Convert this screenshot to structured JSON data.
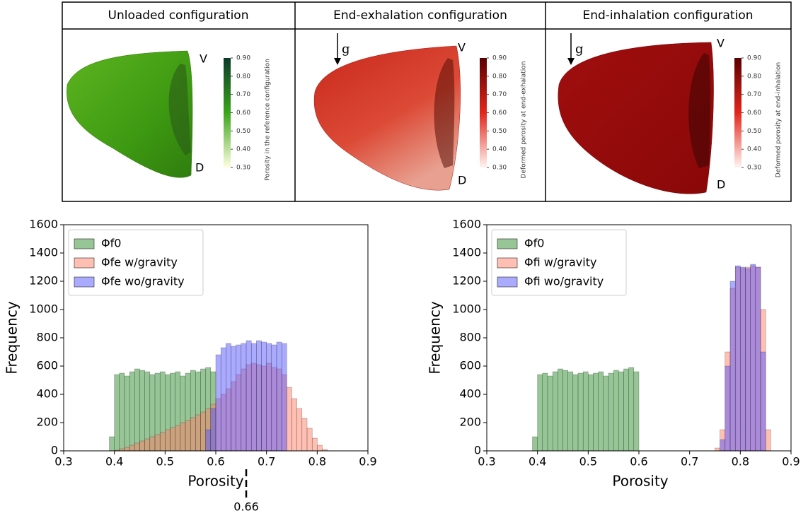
{
  "panels": [
    {
      "title": "Unloaded configuration",
      "labels": [
        "V",
        "D"
      ],
      "colorbar": {
        "label": "Porosity in the reference configuration",
        "clim": [
          0.3,
          0.9
        ],
        "colors": [
          "#ffffe0",
          "#3aa51a",
          "#0b3a2a"
        ],
        "ticks": [
          {
            "value": 0.3,
            "label": "0.30"
          },
          {
            "value": 0.4,
            "label": "0.40"
          },
          {
            "value": 0.5,
            "label": "0.50"
          },
          {
            "value": 0.6,
            "label": "0.60"
          },
          {
            "value": 0.7,
            "label": "0.70"
          },
          {
            "value": 0.8,
            "label": "0.80"
          },
          {
            "value": 0.9,
            "label": "0.90"
          }
        ]
      }
    },
    {
      "title": "End-exhalation configuration",
      "labels": [
        "V",
        "D"
      ],
      "gravity_label": "g",
      "colorbar": {
        "label": "Deformed porosity at end-exhalation",
        "clim": [
          0.3,
          0.9
        ],
        "colors": [
          "#fff5f0",
          "#e3261c",
          "#5a0000"
        ],
        "ticks": [
          {
            "value": 0.3,
            "label": "0.30"
          },
          {
            "value": 0.4,
            "label": "0.40"
          },
          {
            "value": 0.5,
            "label": "0.50"
          },
          {
            "value": 0.6,
            "label": "0.60"
          },
          {
            "value": 0.7,
            "label": "0.70"
          },
          {
            "value": 0.8,
            "label": "0.80"
          },
          {
            "value": 0.9,
            "label": "0.90"
          }
        ]
      }
    },
    {
      "title": "End-inhalation configuration",
      "labels": [
        "V",
        "D"
      ],
      "gravity_label": "g",
      "colorbar": {
        "label": "Deformed porosity at end-inhalation",
        "clim": [
          0.3,
          0.9
        ],
        "colors": [
          "#fff5f0",
          "#e3261c",
          "#5a0000"
        ],
        "ticks": [
          {
            "value": 0.3,
            "label": "0.30"
          },
          {
            "value": 0.4,
            "label": "0.40"
          },
          {
            "value": 0.5,
            "label": "0.50"
          },
          {
            "value": 0.6,
            "label": "0.60"
          },
          {
            "value": 0.7,
            "label": "0.70"
          },
          {
            "value": 0.8,
            "label": "0.80"
          },
          {
            "value": 0.9,
            "label": "0.90"
          }
        ]
      }
    }
  ],
  "chart_data": [
    {
      "type": "histogram",
      "x_label": "Porosity",
      "y_label": "Frequency",
      "xlim": [
        0.3,
        0.9
      ],
      "ylim": [
        0,
        1600
      ],
      "xticks": [
        0.3,
        0.4,
        0.5,
        0.6,
        0.7,
        0.8,
        0.9
      ],
      "yticks": [
        0,
        200,
        400,
        600,
        800,
        1000,
        1200,
        1400,
        1600
      ],
      "legend": "upper left",
      "annotations": [
        {
          "x": 0.66
        }
      ],
      "bins": [
        0.39,
        0.4,
        0.41,
        0.42,
        0.43,
        0.44,
        0.45,
        0.46,
        0.47,
        0.48,
        0.49,
        0.5,
        0.51,
        0.52,
        0.53,
        0.54,
        0.55,
        0.56,
        0.57,
        0.58,
        0.59,
        0.6,
        0.61,
        0.62,
        0.63,
        0.64,
        0.65,
        0.66,
        0.67,
        0.68,
        0.69,
        0.7,
        0.71,
        0.72,
        0.73,
        0.74,
        0.75,
        0.76,
        0.77,
        0.78,
        0.79,
        0.8,
        0.81,
        0.82,
        0.83
      ],
      "series": [
        {
          "name": "Φf0",
          "color": "#2e8b2e",
          "values": [
            100,
            540,
            550,
            530,
            560,
            580,
            570,
            560,
            540,
            550,
            560,
            540,
            550,
            560,
            530,
            550,
            570,
            560,
            580,
            590,
            560,
            0,
            0,
            0,
            0,
            0,
            0,
            0,
            0,
            0,
            0,
            0,
            0,
            0,
            0,
            0,
            0,
            0,
            0,
            0,
            0,
            0,
            0,
            0
          ]
        },
        {
          "name": "Φfe w/gravity",
          "color": "#ff7f66",
          "values": [
            0,
            5,
            15,
            25,
            40,
            55,
            70,
            85,
            100,
            115,
            130,
            150,
            165,
            180,
            200,
            215,
            235,
            255,
            275,
            300,
            330,
            370,
            400,
            440,
            490,
            540,
            580,
            610,
            620,
            610,
            600,
            620,
            590,
            580,
            540,
            450,
            370,
            300,
            230,
            160,
            90,
            40,
            10,
            0
          ]
        },
        {
          "name": "Φfe wo/gravity",
          "color": "#5555ff",
          "values": [
            0,
            0,
            0,
            0,
            0,
            0,
            0,
            0,
            0,
            0,
            0,
            0,
            0,
            0,
            0,
            0,
            0,
            0,
            0,
            150,
            300,
            680,
            730,
            760,
            740,
            750,
            760,
            780,
            760,
            780,
            770,
            760,
            750,
            770,
            760,
            0,
            0,
            0,
            0,
            0,
            0,
            0,
            0,
            0
          ]
        }
      ]
    },
    {
      "type": "histogram",
      "x_label": "Porosity",
      "y_label": "Frequency",
      "xlim": [
        0.3,
        0.9
      ],
      "ylim": [
        0,
        1600
      ],
      "xticks": [
        0.3,
        0.4,
        0.5,
        0.6,
        0.7,
        0.8,
        0.9
      ],
      "yticks": [
        0,
        200,
        400,
        600,
        800,
        1000,
        1200,
        1400,
        1600
      ],
      "legend": "upper left",
      "bins": [
        0.39,
        0.4,
        0.41,
        0.42,
        0.43,
        0.44,
        0.45,
        0.46,
        0.47,
        0.48,
        0.49,
        0.5,
        0.51,
        0.52,
        0.53,
        0.54,
        0.55,
        0.56,
        0.57,
        0.58,
        0.59,
        0.6,
        0.61,
        0.62,
        0.63,
        0.64,
        0.65,
        0.66,
        0.67,
        0.68,
        0.69,
        0.7,
        0.71,
        0.72,
        0.73,
        0.74,
        0.75,
        0.76,
        0.77,
        0.78,
        0.79,
        0.8,
        0.81,
        0.82,
        0.83,
        0.84,
        0.85,
        0.86
      ],
      "series": [
        {
          "name": "Φf0",
          "color": "#2e8b2e",
          "values": [
            100,
            540,
            550,
            530,
            560,
            580,
            570,
            560,
            540,
            550,
            560,
            540,
            550,
            560,
            530,
            550,
            570,
            560,
            580,
            590,
            560,
            0,
            0,
            0,
            0,
            0,
            0,
            0,
            0,
            0,
            0,
            0,
            0,
            0,
            0,
            0,
            0,
            0,
            0,
            0,
            0,
            0,
            0,
            0,
            0,
            0,
            0
          ]
        },
        {
          "name": "Φfi w/gravity",
          "color": "#ff7f66",
          "values": [
            0,
            0,
            0,
            0,
            0,
            0,
            0,
            0,
            0,
            0,
            0,
            0,
            0,
            0,
            0,
            0,
            0,
            0,
            0,
            0,
            0,
            0,
            0,
            0,
            0,
            0,
            0,
            0,
            0,
            0,
            0,
            0,
            0,
            0,
            0,
            0,
            20,
            150,
            700,
            1150,
            1300,
            1290,
            1300,
            1310,
            1300,
            1000,
            150
          ]
        },
        {
          "name": "Φfi wo/gravity",
          "color": "#5555ff",
          "values": [
            0,
            0,
            0,
            0,
            0,
            0,
            0,
            0,
            0,
            0,
            0,
            0,
            0,
            0,
            0,
            0,
            0,
            0,
            0,
            0,
            0,
            0,
            0,
            0,
            0,
            0,
            0,
            0,
            0,
            0,
            0,
            0,
            0,
            0,
            0,
            0,
            0,
            80,
            600,
            1200,
            1310,
            1300,
            1290,
            1320,
            1300,
            700,
            0
          ]
        }
      ]
    }
  ]
}
